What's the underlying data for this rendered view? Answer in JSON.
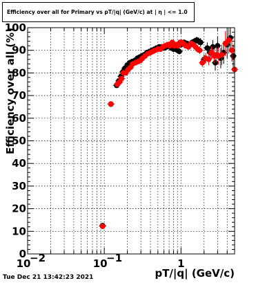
{
  "title": "Efficiency over all for Primary vs pT/|q| (GeV/c) at | η | <= 1.0",
  "timestamp": "Tue Dec 21 13:42:23 2021",
  "chart_data": {
    "type": "scatter",
    "title": "Efficiency over all for Primary vs pT/|q| (GeV/c) at | η | <= 1.0",
    "xlabel": "pT/|q| (GeV/c)",
    "ylabel": "Efficiency over all (%)",
    "xscale": "log",
    "xlim": [
      0.01,
      5.0
    ],
    "ylim": [
      0,
      100
    ],
    "grid": true,
    "x_ticks": [
      {
        "value": 0.01,
        "base": "10",
        "exp": "−2"
      },
      {
        "value": 0.1,
        "base": "10",
        "exp": "−1"
      },
      {
        "value": 1,
        "base": "1",
        "exp": ""
      }
    ],
    "y_ticks": [
      "0",
      "10",
      "20",
      "30",
      "40",
      "50",
      "60",
      "70",
      "80",
      "90",
      "100"
    ],
    "series": [
      {
        "color": "#000000",
        "x": [
          0.095,
          0.122,
          0.145,
          0.155,
          0.165,
          0.175,
          0.185,
          0.2,
          0.215,
          0.23,
          0.25,
          0.27,
          0.29,
          0.31,
          0.33,
          0.36,
          0.39,
          0.42,
          0.45,
          0.48,
          0.52,
          0.56,
          0.6,
          0.65,
          0.7,
          0.75,
          0.8,
          0.85,
          0.9,
          0.95,
          1.0,
          1.05,
          1.1,
          1.2,
          1.3,
          1.4,
          1.5,
          1.6,
          1.7,
          1.8,
          2.0,
          2.2,
          2.4,
          2.6,
          2.8,
          3.0,
          3.3,
          3.6,
          4.0,
          4.4,
          4.8
        ],
        "y": [
          12.5,
          66.2,
          74.5,
          76.5,
          78.5,
          80.5,
          82.0,
          83.5,
          84.5,
          85.0,
          85.5,
          86.5,
          87.0,
          87.5,
          88.0,
          89.0,
          89.5,
          90.0,
          90.5,
          91.0,
          91.5,
          91.5,
          91.0,
          91.5,
          92.5,
          91.0,
          90.5,
          91.0,
          90.0,
          89.5,
          92.5,
          93.0,
          93.5,
          93.0,
          92.5,
          93.5,
          94.0,
          94.5,
          94.0,
          93.5,
          86.0,
          91.0,
          89.0,
          91.5,
          84.5,
          92.0,
          86.5,
          89.0,
          92.5,
          95.5,
          87.5
        ],
        "yerr": [
          0.6,
          0.6,
          1.0,
          1.0,
          1.0,
          1.0,
          0.8,
          0.8,
          0.8,
          0.8,
          0.7,
          0.7,
          0.7,
          0.7,
          0.7,
          0.6,
          0.6,
          0.6,
          0.6,
          0.6,
          0.6,
          0.6,
          0.6,
          0.7,
          0.7,
          0.7,
          0.8,
          0.8,
          0.8,
          0.8,
          0.9,
          1.0,
          1.0,
          1.1,
          1.2,
          1.3,
          1.4,
          1.5,
          1.7,
          1.9,
          2.2,
          2.5,
          2.7,
          3.0,
          3.5,
          4.0,
          4.5,
          5.0,
          6.0,
          5.0,
          5.0
        ]
      },
      {
        "color": "#ff0000",
        "x": [
          0.095,
          0.122,
          0.148,
          0.158,
          0.168,
          0.178,
          0.19,
          0.205,
          0.22,
          0.235,
          0.255,
          0.275,
          0.295,
          0.315,
          0.34,
          0.37,
          0.4,
          0.43,
          0.46,
          0.5,
          0.54,
          0.58,
          0.62,
          0.67,
          0.72,
          0.77,
          0.82,
          0.87,
          0.92,
          0.97,
          1.02,
          1.08,
          1.15,
          1.25,
          1.35,
          1.45,
          1.55,
          1.65,
          1.75,
          1.9,
          2.1,
          2.3,
          2.5,
          2.7,
          2.9,
          3.1,
          3.4,
          3.8,
          4.2,
          4.6,
          5.0
        ],
        "y": [
          12.2,
          66.3,
          75.0,
          76.0,
          77.5,
          80.0,
          80.0,
          81.5,
          82.5,
          84.0,
          84.5,
          85.0,
          85.5,
          86.5,
          87.5,
          88.5,
          89.0,
          89.5,
          90.0,
          90.5,
          90.5,
          91.5,
          92.0,
          92.5,
          92.0,
          93.5,
          92.0,
          92.5,
          92.0,
          93.5,
          93.5,
          93.0,
          92.0,
          91.5,
          93.0,
          92.5,
          91.5,
          90.5,
          90.0,
          84.5,
          86.5,
          86.0,
          89.0,
          87.5,
          88.0,
          87.5,
          88.0,
          93.0,
          94.5,
          90.0,
          81.5
        ],
        "yerr": [
          0.6,
          0.6,
          1.0,
          1.0,
          1.0,
          1.0,
          0.9,
          0.8,
          0.8,
          0.8,
          0.7,
          0.7,
          0.7,
          0.7,
          0.7,
          0.6,
          0.6,
          0.6,
          0.6,
          0.6,
          0.6,
          0.6,
          0.6,
          0.7,
          0.7,
          0.7,
          0.8,
          0.8,
          0.8,
          0.8,
          0.9,
          1.0,
          1.0,
          1.1,
          1.2,
          1.3,
          1.4,
          1.5,
          1.7,
          2.0,
          2.3,
          2.6,
          2.8,
          3.1,
          3.5,
          4.0,
          4.5,
          5.5,
          6.0,
          5.0,
          10.0
        ]
      }
    ]
  }
}
